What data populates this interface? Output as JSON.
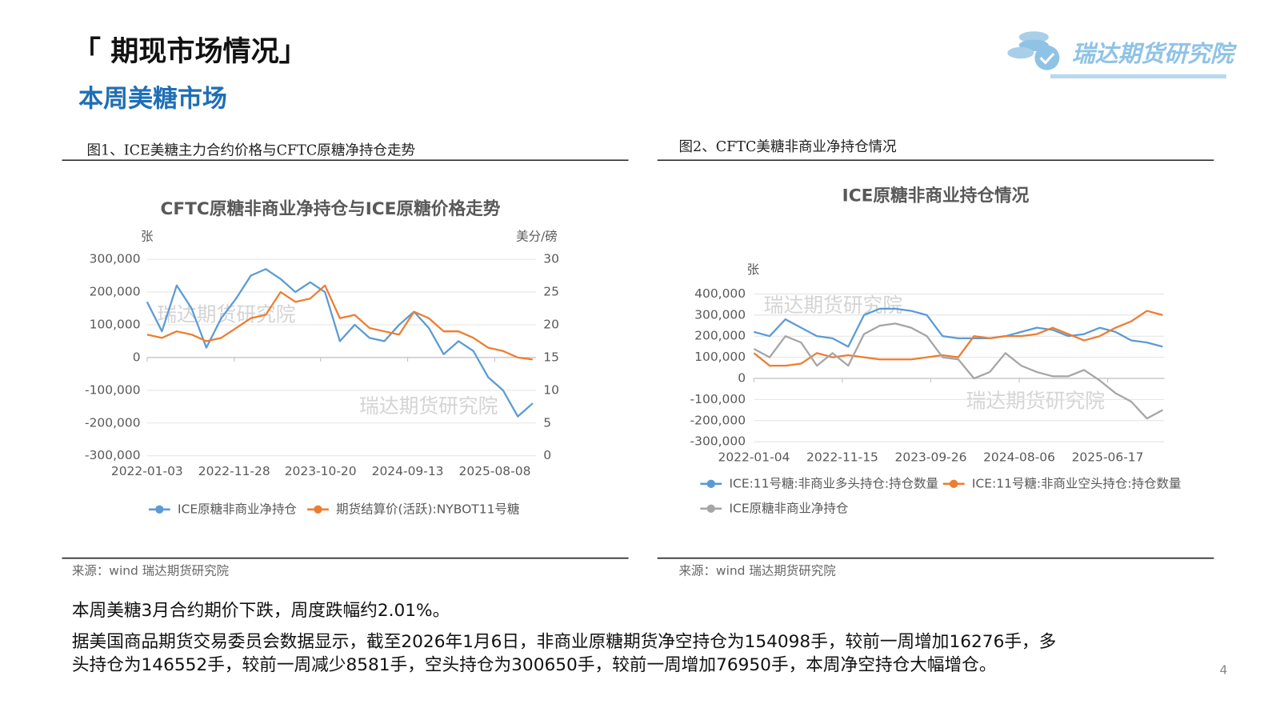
{
  "header": {
    "title": "「 期现市场情况」",
    "subtitle": "本周美糖市场",
    "logo": "瑞达期货研究院"
  },
  "figures": [
    {
      "caption": "图1、ICE美糖主力合约价格与CFTC原糖净持仓走势",
      "source": "来源：wind   瑞达期货研究院",
      "watermark": "瑞达期货研究院"
    },
    {
      "caption": "图2、CFTC美糖非商业净持仓情况",
      "source": "来源：wind   瑞达期货研究院",
      "watermark": "瑞达期货研究院"
    }
  ],
  "paragraphs": [
    "本周美糖3月合约期价下跌，周度跌幅约2.01%。",
    "据美国商品期货交易委员会数据显示，截至2026年1月6日，非商业原糖期货净空持仓为154098手，较前一周增加16276手，多",
    "头持仓为146552手，较前一周减少8581手，空头持仓为300650手，较前一周增加76950手，本周净空持仓大幅增仓。"
  ],
  "page_number": "4",
  "chart_data": [
    {
      "type": "line",
      "title": "CFTC原糖非商业净持仓与ICE原糖价格走势",
      "y_label": "张",
      "y2_label": "美分/磅",
      "x": [
        "2022-01-03",
        "2022-02-28",
        "2022-04-25",
        "2022-06-20",
        "2022-08-15",
        "2022-10-10",
        "2022-12-05",
        "2023-01-30",
        "2023-03-27",
        "2023-05-22",
        "2023-07-17",
        "2023-09-11",
        "2023-11-06",
        "2024-01-01",
        "2024-02-26",
        "2024-04-22",
        "2024-06-17",
        "2024-08-12",
        "2024-10-07",
        "2024-12-02",
        "2025-01-27",
        "2025-03-24",
        "2025-05-19",
        "2025-07-14",
        "2025-09-08",
        "2025-11-03",
        "2025-12-29"
      ],
      "xlim": [
        "2022-01-03",
        "2025-12-29"
      ],
      "xticks": [
        "2022-01-03",
        "2022-11-28",
        "2023-10-20",
        "2024-09-13",
        "2025-08-08"
      ],
      "ylim": [
        -300000,
        300000
      ],
      "yticks": [
        {
          "value": -300000,
          "label": "-300,000"
        },
        {
          "value": -200000,
          "label": "-200,000"
        },
        {
          "value": -100000,
          "label": "-100,000"
        },
        0,
        {
          "value": 100000,
          "label": "100,000"
        },
        {
          "value": 200000,
          "label": "200,000"
        },
        {
          "value": 300000,
          "label": "300,000"
        }
      ],
      "y2lim": [
        0,
        30
      ],
      "y2ticks": [
        0,
        5,
        10,
        15,
        20,
        25,
        30
      ],
      "grid": true,
      "series": [
        {
          "name": "ICE原糖非商业净持仓",
          "color": "#5b9bd5",
          "values": [
            170000,
            80000,
            220000,
            150000,
            30000,
            120000,
            180000,
            250000,
            270000,
            240000,
            200000,
            230000,
            200000,
            50000,
            100000,
            60000,
            50000,
            100000,
            140000,
            90000,
            10000,
            50000,
            20000,
            -60000,
            -100000,
            -180000,
            -140000
          ]
        },
        {
          "name": "期货结算价(活跃):NYBOT11号糖",
          "color": "#ed7d31",
          "axis": "y2",
          "values": [
            18.5,
            18,
            19,
            18.5,
            17.5,
            18,
            19.5,
            21,
            21.5,
            25,
            23.5,
            24,
            26,
            21,
            21.5,
            19.5,
            19,
            18.5,
            22,
            21,
            19,
            19,
            18,
            16.5,
            16,
            15,
            14.7
          ]
        }
      ]
    },
    {
      "type": "line",
      "title": "ICE原糖非商业持仓情况",
      "y_label": "张",
      "x": [
        "2022-01-04",
        "2022-03-01",
        "2022-04-26",
        "2022-06-21",
        "2022-08-16",
        "2022-10-11",
        "2022-12-06",
        "2023-01-31",
        "2023-03-28",
        "2023-05-23",
        "2023-07-18",
        "2023-09-12",
        "2023-11-07",
        "2024-01-02",
        "2024-02-27",
        "2024-04-23",
        "2024-06-18",
        "2024-08-13",
        "2024-10-08",
        "2024-12-03",
        "2025-01-28",
        "2025-03-25",
        "2025-05-20",
        "2025-07-15",
        "2025-09-09",
        "2025-11-04",
        "2025-12-30"
      ],
      "xlim": [
        "2022-01-04",
        "2025-12-30"
      ],
      "xticks": [
        "2022-01-04",
        "2022-11-15",
        "2023-09-26",
        "2024-08-06",
        "2025-06-17"
      ],
      "ylim": [
        -300000,
        400000
      ],
      "yticks": [
        {
          "value": -300000,
          "label": "-300,000"
        },
        {
          "value": -200000,
          "label": "-200,000"
        },
        {
          "value": -100000,
          "label": "-100,000"
        },
        0,
        {
          "value": 100000,
          "label": "100,000"
        },
        {
          "value": 200000,
          "label": "200,000"
        },
        {
          "value": 300000,
          "label": "300,000"
        },
        {
          "value": 400000,
          "label": "400,000"
        }
      ],
      "grid": true,
      "series": [
        {
          "name": "ICE:11号糖:非商业多头持仓:持仓数量",
          "color": "#5b9bd5",
          "values": [
            220000,
            200000,
            280000,
            240000,
            200000,
            190000,
            150000,
            300000,
            330000,
            330000,
            320000,
            300000,
            200000,
            190000,
            190000,
            190000,
            200000,
            220000,
            240000,
            230000,
            200000,
            210000,
            240000,
            220000,
            180000,
            170000,
            150000
          ]
        },
        {
          "name": "ICE:11号糖:非商业空头持仓:持仓数量",
          "color": "#ed7d31",
          "values": [
            120000,
            60000,
            60000,
            70000,
            120000,
            100000,
            110000,
            100000,
            90000,
            90000,
            90000,
            100000,
            110000,
            100000,
            200000,
            190000,
            200000,
            200000,
            210000,
            240000,
            210000,
            180000,
            200000,
            240000,
            270000,
            320000,
            300000
          ]
        },
        {
          "name": "ICE原糖非商业净持仓",
          "color": "#a5a5a5",
          "values": [
            140000,
            100000,
            200000,
            170000,
            60000,
            120000,
            60000,
            210000,
            250000,
            260000,
            240000,
            200000,
            100000,
            90000,
            0,
            30000,
            120000,
            60000,
            30000,
            10000,
            10000,
            40000,
            -10000,
            -70000,
            -110000,
            -190000,
            -150000
          ]
        }
      ]
    }
  ]
}
